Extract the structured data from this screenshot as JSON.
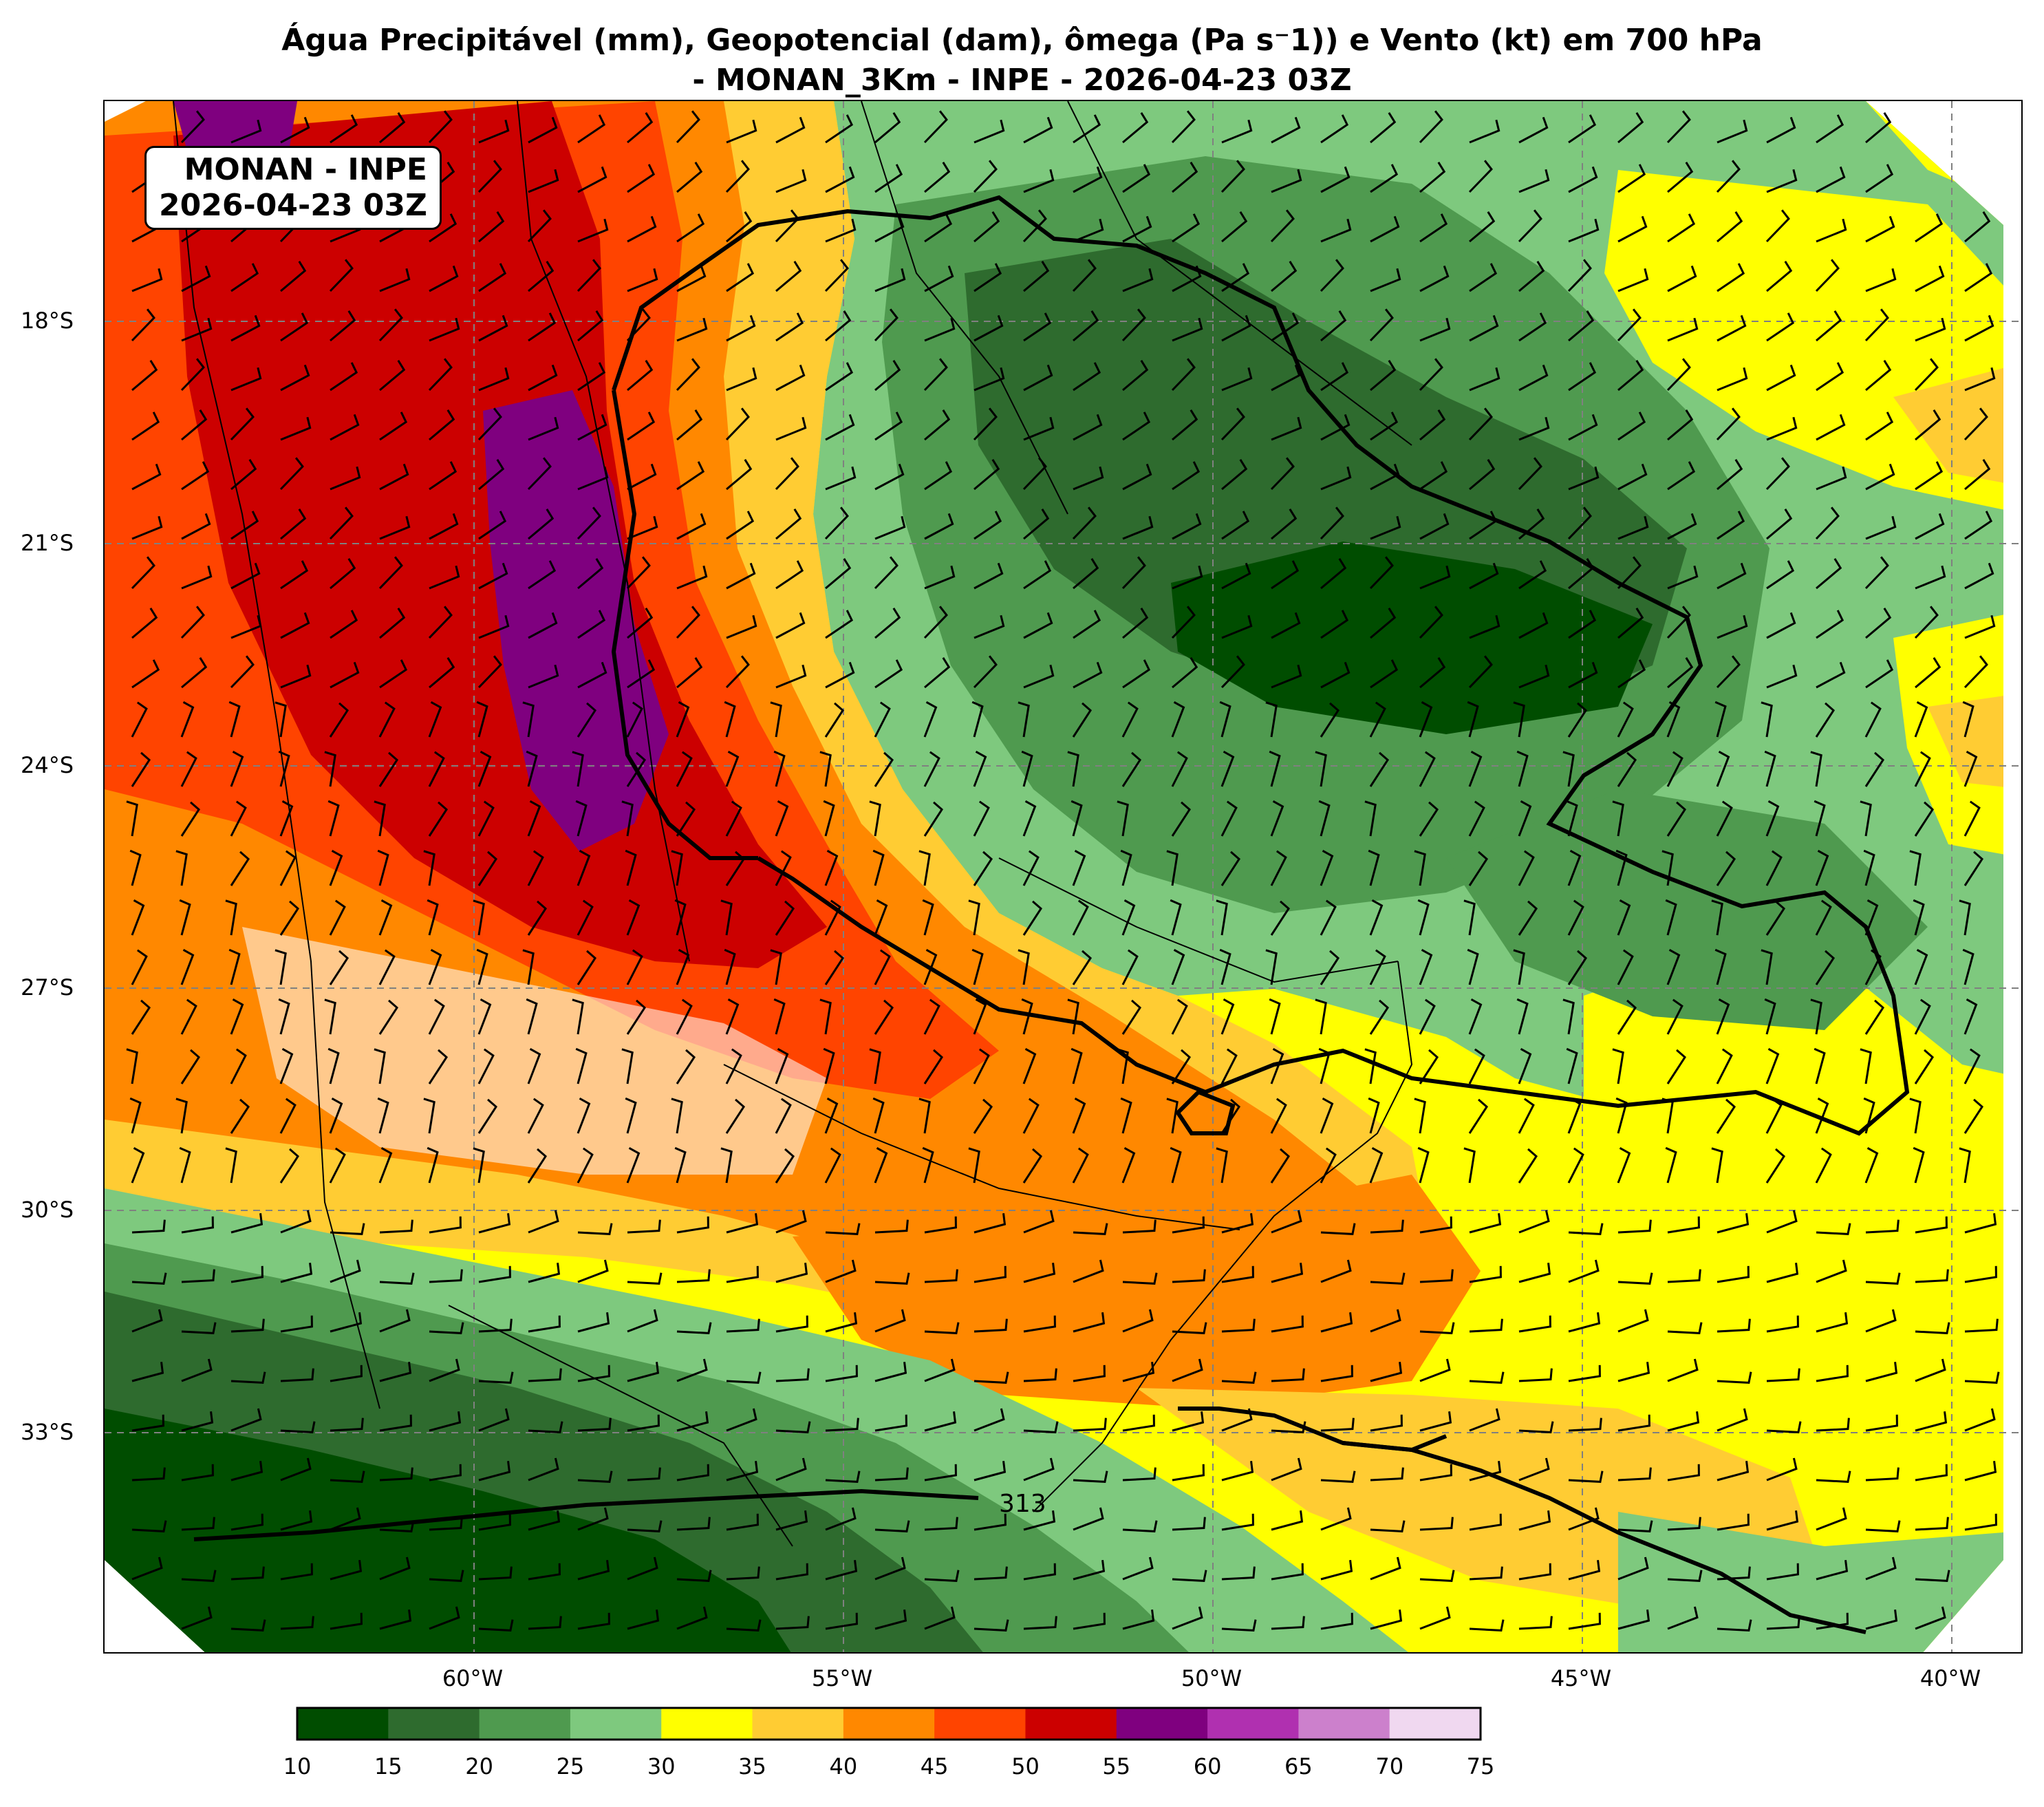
{
  "title": {
    "line1": "Água Precipitável (mm), Geopotencial (dam), ômega (Pa s⁻1)) e Vento (kt) em 700 hPa",
    "line2": "- MONAN_3Km - INPE - 2026-04-23 03Z"
  },
  "info_box": {
    "line1": "MONAN - INPE",
    "line2": "2026-04-23 03Z"
  },
  "axes": {
    "lat_labels": [
      "18°S",
      "21°S",
      "24°S",
      "27°S",
      "30°S",
      "33°S"
    ],
    "lon_labels": [
      "60°W",
      "55°W",
      "50°W",
      "45°W",
      "40°W"
    ]
  },
  "contour_label": "313",
  "colorbar": {
    "ticks": [
      "10",
      "15",
      "20",
      "25",
      "30",
      "35",
      "40",
      "45",
      "50",
      "55",
      "60",
      "65",
      "70",
      "75"
    ],
    "colors": [
      "#004d00",
      "#2e6b2e",
      "#4f9a4f",
      "#7ec97e",
      "#ffff00",
      "#ffcc33",
      "#ff8800",
      "#ff4400",
      "#cc0000",
      "#7f007f",
      "#b030b0",
      "#cc80cc",
      "#f0d8f0"
    ]
  }
}
